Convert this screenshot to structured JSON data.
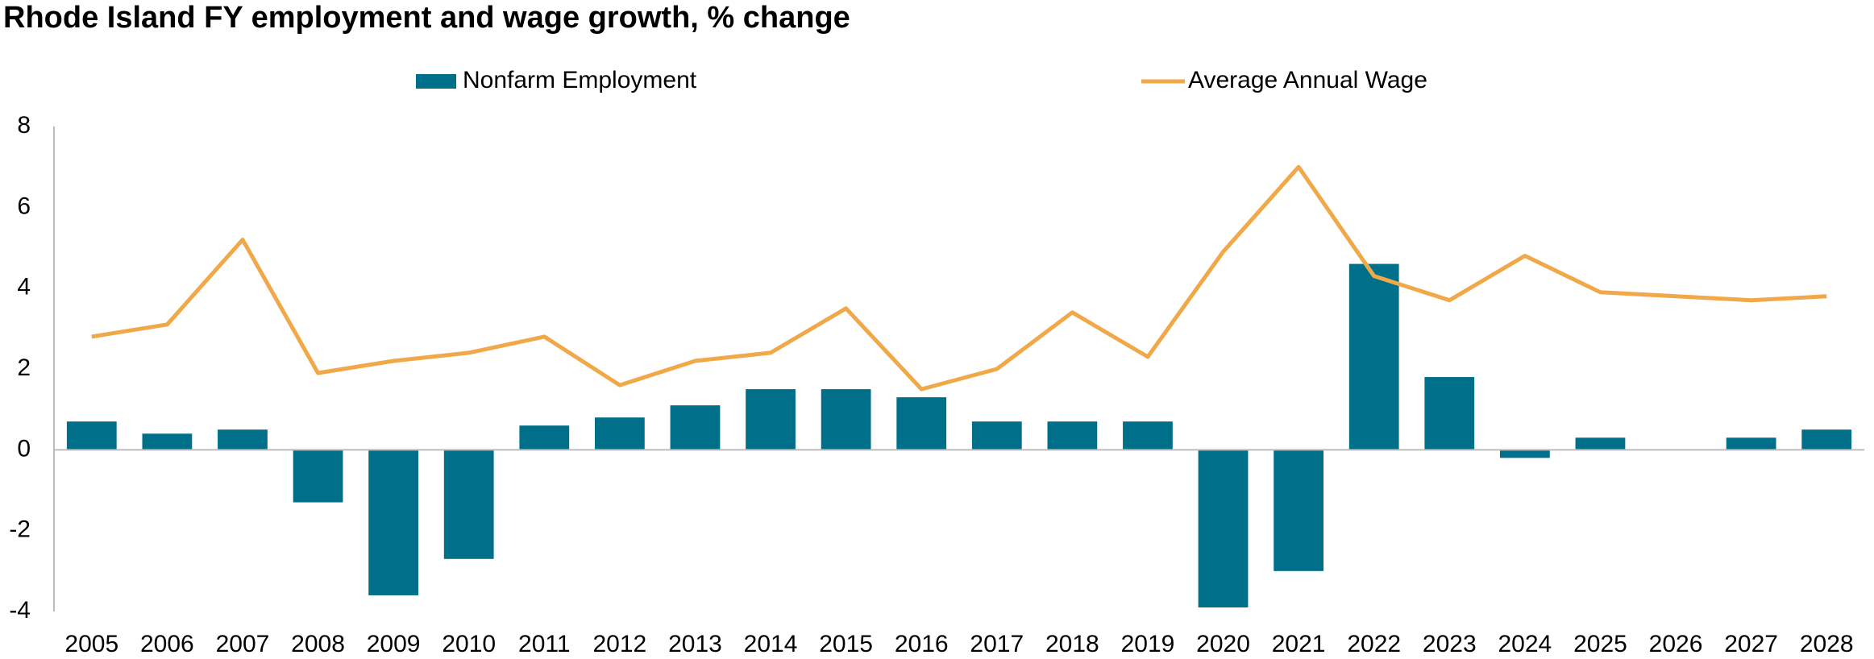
{
  "chart_data": {
    "type": "bar",
    "title": "Rhode Island FY employment and wage growth, % change",
    "categories": [
      "2005",
      "2006",
      "2007",
      "2008",
      "2009",
      "2010",
      "2011",
      "2012",
      "2013",
      "2014",
      "2015",
      "2016",
      "2017",
      "2018",
      "2019",
      "2020",
      "2021",
      "2022",
      "2023",
      "2024",
      "2025",
      "2026",
      "2027",
      "2028"
    ],
    "series": [
      {
        "name": "Nonfarm Employment",
        "type": "bar",
        "color": "#006f8a",
        "values": [
          0.7,
          0.4,
          0.5,
          -1.3,
          -3.6,
          -2.7,
          0.6,
          0.8,
          1.1,
          1.5,
          1.5,
          1.3,
          0.7,
          0.7,
          0.7,
          -3.9,
          -3.0,
          4.6,
          1.8,
          -0.2,
          0.3,
          0.0,
          0.3,
          0.5
        ]
      },
      {
        "name": "Average Annual Wage",
        "type": "line",
        "color": "#f0a848",
        "values": [
          2.8,
          3.1,
          5.2,
          1.9,
          2.2,
          2.4,
          2.8,
          1.6,
          2.2,
          2.4,
          3.5,
          1.5,
          2.0,
          3.4,
          2.3,
          4.9,
          7.0,
          4.3,
          3.7,
          4.8,
          3.9,
          3.8,
          3.7,
          3.8
        ]
      }
    ],
    "ylim": [
      -4,
      8
    ],
    "yticks": [
      -4,
      -2,
      0,
      2,
      4,
      6,
      8
    ],
    "grid": false,
    "legend": "top"
  }
}
